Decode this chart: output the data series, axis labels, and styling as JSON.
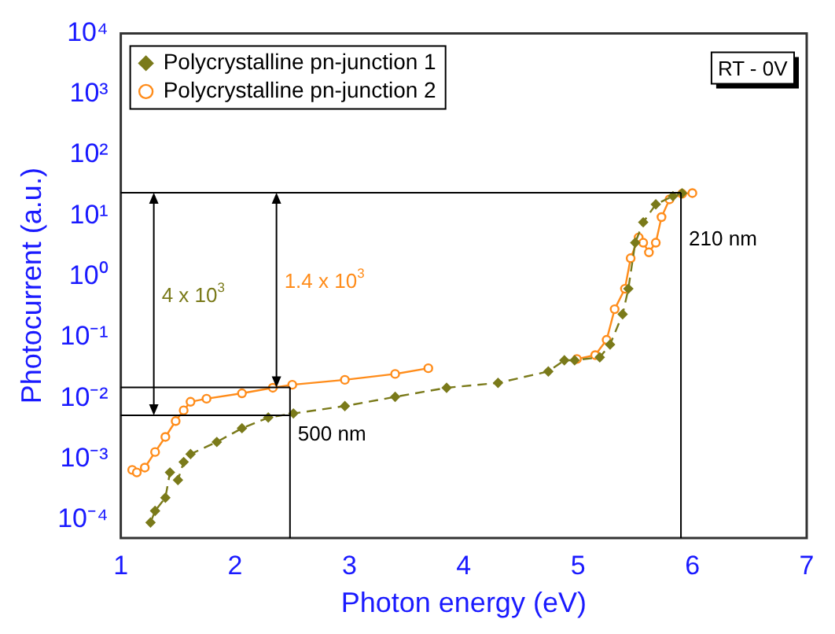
{
  "chart_data": {
    "type": "line",
    "xlabel": "Photon energy (eV)",
    "ylabel": "Photocurrent (a.u.)",
    "log": "y",
    "grid": false,
    "legend": "top left",
    "xlim": [
      1,
      7
    ],
    "xticks": [
      1,
      2,
      3,
      4,
      5,
      6,
      7
    ],
    "ylim": [
      5e-05,
      10000
    ],
    "yticks": [
      {
        "value": 0.0001,
        "label": "10⁻⁴"
      },
      {
        "value": 0.001,
        "label": "10⁻³"
      },
      {
        "value": 0.01,
        "label": "10⁻²"
      },
      {
        "value": 0.1,
        "label": "10⁻¹"
      },
      {
        "value": 1,
        "label": "10⁰"
      },
      {
        "value": 10,
        "label": "10¹"
      },
      {
        "value": 100,
        "label": "10²"
      },
      {
        "value": 1000,
        "label": "10³"
      },
      {
        "value": 10000,
        "label": "10⁴"
      }
    ],
    "series": [
      {
        "name": "Polycrystalline pn-junction 1",
        "color": "#7a7a1a",
        "marker": "diamond",
        "line_style": "dashed",
        "x": [
          1.26,
          1.3,
          1.39,
          1.43,
          1.5,
          1.55,
          1.61,
          1.84,
          2.06,
          2.29,
          2.51,
          2.96,
          3.4,
          3.85,
          4.3,
          4.74,
          4.88,
          4.97,
          5.19,
          5.28,
          5.39,
          5.44,
          5.5,
          5.57,
          5.68,
          5.83,
          5.91
        ],
        "values": [
          9e-05,
          0.00014,
          0.00023,
          0.0006,
          0.00045,
          0.00089,
          0.0012,
          0.0019,
          0.0032,
          0.0048,
          0.0056,
          0.0074,
          0.0105,
          0.0148,
          0.0178,
          0.0275,
          0.042,
          0.042,
          0.047,
          0.076,
          0.24,
          0.63,
          3.6,
          7.8,
          15.4,
          21,
          23.5
        ]
      },
      {
        "name": "Polycrystalline pn-junction 2",
        "color": "#ff8c1a",
        "marker": "circle",
        "line_style": "solid",
        "x": [
          1.1,
          1.14,
          1.21,
          1.3,
          1.39,
          1.48,
          1.55,
          1.61,
          1.75,
          2.06,
          2.33,
          2.5,
          2.96,
          3.4,
          3.69,
          4.3,
          4.99,
          5.15,
          5.25,
          5.32,
          5.41,
          5.46,
          5.53,
          5.57,
          5.62,
          5.68,
          5.73,
          5.8,
          5.91,
          6.0
        ],
        "values": [
          0.00066,
          0.0006,
          0.00072,
          0.0013,
          0.0023,
          0.0042,
          0.0063,
          0.0087,
          0.0098,
          0.012,
          0.0148,
          0.0166,
          0.02,
          0.025,
          0.031,
          null,
          0.044,
          0.051,
          0.091,
          0.29,
          0.63,
          2.0,
          4.4,
          3.6,
          2.5,
          3.6,
          9.5,
          18.6,
          23,
          23.6
        ]
      }
    ],
    "ref_lines": [
      {
        "axis": "y",
        "value": 24,
        "color": "#000000"
      },
      {
        "axis": "y",
        "value": 0.0052,
        "color": "#000000"
      },
      {
        "axis": "y",
        "value": 0.015,
        "color": "#000000"
      },
      {
        "axis": "x",
        "value": 2.48,
        "label": "500 nm",
        "color": "#000000"
      },
      {
        "axis": "x",
        "value": 5.9,
        "label": "210 nm",
        "color": "#000000"
      }
    ],
    "annotations": [
      "4 x 10$^{3}$",
      "1.4 x 10$^{3}$",
      "RT - 0V"
    ]
  }
}
